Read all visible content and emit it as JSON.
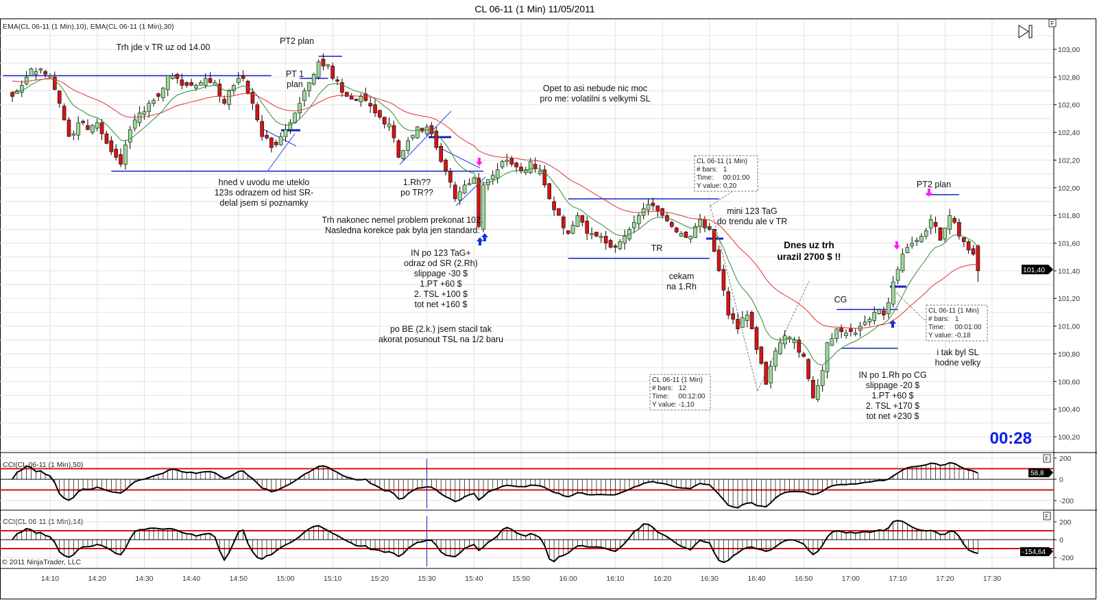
{
  "title": "CL 06-11 (1 Min)  11/05/2011",
  "panels": {
    "price_label": "EMA(CL 06-11 (1 Min),10), EMA(CL 06-11 (1 Min),30)",
    "cci50_label": "CCI(CL 06-11 (1 Min),50)",
    "cci14_label": "CCI(CL 06-11 (1 Min),14)",
    "copyright": "© 2011 NinjaTrader, LLC",
    "f_button": "F",
    "clock": "00:28",
    "last_price": "101,40",
    "cci50_last": "58,8",
    "cci14_last": "-154,64"
  },
  "price_axis": [
    "103,00",
    "102,80",
    "102,60",
    "102,40",
    "102,20",
    "102,00",
    "101,80",
    "101,60",
    "101,40",
    "101,20",
    "101,00",
    "100,80",
    "100,60",
    "100,40",
    "100,20"
  ],
  "cci50_axis": [
    "200",
    "0",
    "-200"
  ],
  "cci14_axis": [
    "200",
    "0",
    "-200"
  ],
  "time_axis": [
    "14:10",
    "14:20",
    "14:30",
    "14:40",
    "14:50",
    "15:00",
    "15:10",
    "15:20",
    "15:30",
    "15:40",
    "15:50",
    "16:00",
    "16:10",
    "16:20",
    "16:30",
    "16:40",
    "16:50",
    "17:00",
    "17:10",
    "17:20",
    "17:30"
  ],
  "annotations": [
    {
      "lines": [
        "Trh jde v TR uz od 14.00"
      ]
    },
    {
      "lines": [
        "PT2 plan"
      ]
    },
    {
      "lines": [
        "PT 1",
        "plan"
      ]
    },
    {
      "lines": [
        "Opet to asi nebude nic moc",
        "pro me: volatilni s velkymi SL"
      ]
    },
    {
      "lines": [
        "hned v uvodu me uteklo",
        "123s odrazem od hist SR-",
        "delal jsem si poznamky"
      ]
    },
    {
      "lines": [
        "1.Rh??",
        "po TR??"
      ]
    },
    {
      "lines": [
        "Trh nakonec nemel problem prekonat 102.",
        "Nasledna korekce pak byla jen standard."
      ]
    },
    {
      "lines": [
        "IN po 123 TaG+",
        "odraz od SR (2.Rh)",
        "slippage -30 $",
        "1.PT +60 $",
        "2. TSL +100 $",
        "tot net +160 $"
      ]
    },
    {
      "lines": [
        "po BE (2.k.) jsem stacil tak",
        "akorat posunout TSL na 1/2 baru"
      ]
    },
    {
      "lines": [
        "mini 123 TaG",
        "do trendu ale v TR"
      ]
    },
    {
      "lines": [
        "TR"
      ]
    },
    {
      "lines": [
        "cekam",
        "na 1.Rh"
      ]
    },
    {
      "lines": [
        "Dnes uz trh",
        "urazil 2700 $ !!"
      ],
      "bold": true
    },
    {
      "lines": [
        "CG"
      ]
    },
    {
      "lines": [
        "PT2 plan"
      ]
    },
    {
      "lines": [
        "IN po 1.Rh po CG",
        "slippage -20 $",
        "1.PT +60 $",
        "2. TSL +170 $",
        "tot net +230 $"
      ]
    },
    {
      "lines": [
        "i tak byl SL",
        "hodne velky"
      ]
    }
  ],
  "info_boxes": [
    {
      "lines": [
        "CL 06-11 (1 Min)",
        "# bars:   1",
        "Time:     00:01:00",
        "Y value: 0,20"
      ]
    },
    {
      "lines": [
        "CL 06-11 (1 Min)",
        "# bars:   12",
        "Time:     00:12:00",
        "Y value: -1,10"
      ]
    },
    {
      "lines": [
        "CL 06-11 (1 Min)",
        "# bars:   1",
        "Time:     00:01:00",
        "Y value: -0,18"
      ]
    }
  ],
  "colors": {
    "up": "#98dc98",
    "down": "#d41515",
    "ema10": "#2e8b2e",
    "ema30": "#e03030",
    "drawing": "#1020c8",
    "cci_level": "#d81010",
    "arrow_down": "#ff20ff",
    "arrow_up": "#1030e0"
  },
  "chart_data": {
    "type": "candlestick",
    "symbol": "CL 06-11",
    "interval": "1 Min",
    "date": "11/05/2011",
    "ylim": [
      100.1,
      103.1
    ],
    "xlim": [
      "14:01",
      "17:37"
    ],
    "close_keypoints": [
      [
        "14:02",
        102.66
      ],
      [
        "14:04",
        102.74
      ],
      [
        "14:06",
        102.86
      ],
      [
        "14:08",
        102.86
      ],
      [
        "14:10",
        102.81
      ],
      [
        "14:12",
        102.61
      ],
      [
        "14:14",
        102.37
      ],
      [
        "14:16",
        102.47
      ],
      [
        "14:18",
        102.42
      ],
      [
        "14:20",
        102.47
      ],
      [
        "14:22",
        102.32
      ],
      [
        "14:24",
        102.22
      ],
      [
        "14:25",
        102.17
      ],
      [
        "14:27",
        102.42
      ],
      [
        "14:29",
        102.54
      ],
      [
        "14:31",
        102.61
      ],
      [
        "14:33",
        102.66
      ],
      [
        "14:35",
        102.81
      ],
      [
        "14:37",
        102.79
      ],
      [
        "14:39",
        102.74
      ],
      [
        "14:41",
        102.74
      ],
      [
        "14:43",
        102.79
      ],
      [
        "14:45",
        102.76
      ],
      [
        "14:47",
        102.61
      ],
      [
        "14:49",
        102.74
      ],
      [
        "14:51",
        102.79
      ],
      [
        "14:53",
        102.61
      ],
      [
        "14:55",
        102.37
      ],
      [
        "14:57",
        102.29
      ],
      [
        "14:59",
        102.37
      ],
      [
        "15:01",
        102.47
      ],
      [
        "15:03",
        102.61
      ],
      [
        "15:05",
        102.76
      ],
      [
        "15:07",
        102.91
      ],
      [
        "15:09",
        102.89
      ],
      [
        "15:10",
        102.79
      ],
      [
        "15:12",
        102.69
      ],
      [
        "15:14",
        102.64
      ],
      [
        "15:16",
        102.66
      ],
      [
        "15:18",
        102.59
      ],
      [
        "15:20",
        102.51
      ],
      [
        "15:22",
        102.46
      ],
      [
        "15:24",
        102.22
      ],
      [
        "15:26",
        102.34
      ],
      [
        "15:28",
        102.44
      ],
      [
        "15:30",
        102.44
      ],
      [
        "15:32",
        102.29
      ],
      [
        "15:34",
        102.12
      ],
      [
        "15:36",
        101.92
      ],
      [
        "15:38",
        102.02
      ],
      [
        "15:40",
        102.07
      ],
      [
        "15:41",
        101.72
      ],
      [
        "15:42",
        102.02
      ],
      [
        "15:44",
        102.09
      ],
      [
        "15:46",
        102.19
      ],
      [
        "15:48",
        102.17
      ],
      [
        "15:50",
        102.12
      ],
      [
        "15:52",
        102.19
      ],
      [
        "15:54",
        102.12
      ],
      [
        "15:56",
        101.92
      ],
      [
        "15:58",
        101.8
      ],
      [
        "16:00",
        101.67
      ],
      [
        "16:02",
        101.8
      ],
      [
        "16:04",
        101.67
      ],
      [
        "16:06",
        101.65
      ],
      [
        "16:08",
        101.6
      ],
      [
        "16:10",
        101.57
      ],
      [
        "16:12",
        101.65
      ],
      [
        "16:14",
        101.75
      ],
      [
        "16:16",
        101.85
      ],
      [
        "16:18",
        101.87
      ],
      [
        "16:20",
        101.8
      ],
      [
        "16:22",
        101.72
      ],
      [
        "16:24",
        101.67
      ],
      [
        "16:26",
        101.65
      ],
      [
        "16:28",
        101.77
      ],
      [
        "16:30",
        101.7
      ],
      [
        "16:32",
        101.4
      ],
      [
        "16:34",
        101.08
      ],
      [
        "16:36",
        100.98
      ],
      [
        "16:38",
        101.08
      ],
      [
        "16:40",
        100.83
      ],
      [
        "16:42",
        100.58
      ],
      [
        "16:44",
        100.82
      ],
      [
        "16:46",
        100.93
      ],
      [
        "16:48",
        100.9
      ],
      [
        "16:50",
        100.78
      ],
      [
        "16:52",
        100.48
      ],
      [
        "16:54",
        100.68
      ],
      [
        "16:55",
        100.88
      ],
      [
        "16:57",
        100.98
      ],
      [
        "16:59",
        100.95
      ],
      [
        "17:01",
        100.95
      ],
      [
        "17:03",
        101.03
      ],
      [
        "17:05",
        101.1
      ],
      [
        "17:07",
        101.08
      ],
      [
        "17:09",
        101.32
      ],
      [
        "17:11",
        101.52
      ],
      [
        "17:13",
        101.6
      ],
      [
        "17:15",
        101.65
      ],
      [
        "17:17",
        101.77
      ],
      [
        "17:19",
        101.62
      ],
      [
        "17:21",
        101.8
      ],
      [
        "17:23",
        101.65
      ],
      [
        "17:25",
        101.55
      ],
      [
        "17:26",
        101.52
      ],
      [
        "17:27",
        101.4
      ]
    ],
    "ema_periods": [
      10,
      30
    ],
    "cci_periods": [
      50,
      14
    ],
    "cci_levels": [
      100,
      -100
    ],
    "last_values": {
      "price": 101.4,
      "cci50": 58.8,
      "cci14": -154.64
    },
    "drawn_levels": [
      {
        "price": 102.81,
        "from": "14:00",
        "to": "14:57"
      },
      {
        "price": 102.12,
        "from": "14:23",
        "to": "15:42"
      },
      {
        "price": 102.95,
        "from": "15:07",
        "to": "15:12"
      },
      {
        "price": 102.79,
        "from": "15:03",
        "to": "15:09"
      },
      {
        "price": 101.92,
        "from": "16:00",
        "to": "16:32"
      },
      {
        "price": 101.49,
        "from": "16:00",
        "to": "16:30"
      },
      {
        "price": 101.12,
        "from": "16:57",
        "to": "17:10"
      },
      {
        "price": 100.84,
        "from": "16:58",
        "to": "17:10"
      },
      {
        "price": 101.95,
        "from": "17:16",
        "to": "17:23"
      }
    ],
    "marker_time": "15:30"
  }
}
